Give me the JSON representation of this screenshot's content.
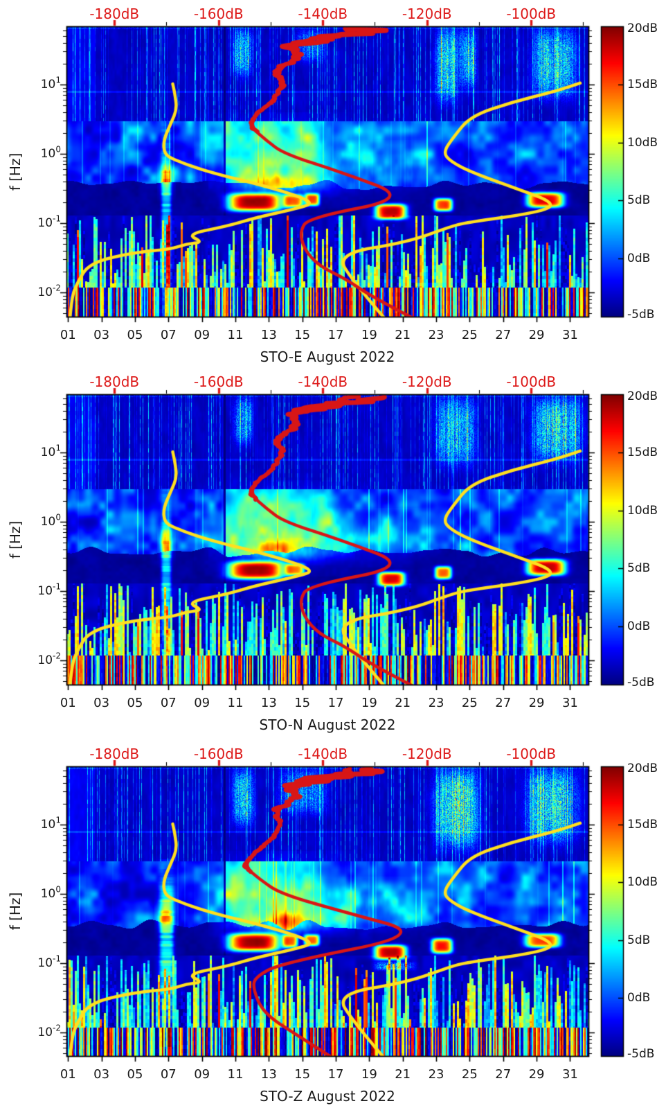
{
  "figure": {
    "background": "#ffffff"
  },
  "chart_data": {
    "type": "heatmap",
    "description": "Three stacked seismic power spectral density spectrograms (daily PSD vs frequency, jet colormap, dB relative scale) with overlaid noise-model curves (yellow) and station median spectrum (red) plotted against the secondary top dB axis.",
    "shared": {
      "x_axis": {
        "tick_labels": [
          "01",
          "03",
          "05",
          "07",
          "09",
          "11",
          "13",
          "15",
          "17",
          "19",
          "21",
          "23",
          "25",
          "27",
          "29",
          "31"
        ],
        "tick_days": [
          1,
          3,
          5,
          7,
          9,
          11,
          13,
          15,
          17,
          19,
          21,
          23,
          25,
          27,
          29,
          31
        ],
        "range_days": [
          0.9,
          32.1
        ]
      },
      "y_axis": {
        "label": "f [Hz]",
        "scale": "log",
        "tick_labels": [
          {
            "base": "10",
            "exp": "1"
          },
          {
            "base": "10",
            "exp": "0"
          },
          {
            "base": "10",
            "exp": "-1"
          },
          {
            "base": "10",
            "exp": "-2"
          }
        ],
        "range_hz": [
          0.0046,
          69
        ]
      },
      "top_axis": {
        "tick_labels": [
          "-180dB",
          "-160dB",
          "-140dB",
          "-120dB",
          "-100dB"
        ],
        "tick_db": [
          -180,
          -160,
          -140,
          -120,
          -100
        ],
        "minor_tick_db": [
          -170,
          -150,
          -130,
          -110,
          -90
        ],
        "range_db": [
          -189.2,
          -89.0
        ],
        "label_color": "#dd1a1a"
      },
      "colorbar": {
        "tick_labels": [
          "20dB",
          "15dB",
          "10dB",
          "5dB",
          "0dB",
          "-5dB"
        ],
        "tick_db": [
          20,
          15,
          10,
          5,
          0,
          -5
        ],
        "range_db": [
          -5,
          20
        ],
        "colormap": "jet"
      },
      "overlays": {
        "yellow_noise_model_low": {
          "color": "#ffdf1f",
          "points_db_hz": [
            [
              -188.6,
              0.0037
            ],
            [
              -188.2,
              0.0083
            ],
            [
              -187.3,
              0.013
            ],
            [
              -184.8,
              0.027
            ],
            [
              -175.9,
              0.038
            ],
            [
              -169.2,
              0.042
            ],
            [
              -166.2,
              0.05
            ],
            [
              -162.9,
              0.053
            ],
            [
              -166.2,
              0.069
            ],
            [
              -158.2,
              0.091
            ],
            [
              -152.9,
              0.12
            ],
            [
              -144.9,
              0.163
            ],
            [
              -141.3,
              0.2
            ],
            [
              -150.1,
              0.33
            ],
            [
              -162.1,
              0.55
            ],
            [
              -168.7,
              0.83
            ],
            [
              -170.4,
              1.0
            ],
            [
              -170.6,
              1.56
            ],
            [
              -169.1,
              2.8
            ],
            [
              -168.0,
              4.4
            ],
            [
              -168.4,
              7.4
            ],
            [
              -168.8,
              10.2
            ]
          ]
        },
        "yellow_noise_model_high": {
          "color": "#ffdf1f",
          "points_db_hz": [
            [
              -127.2,
              0.0035
            ],
            [
              -134.1,
              0.014
            ],
            [
              -137.4,
              0.036
            ],
            [
              -123.8,
              0.053
            ],
            [
              -115.5,
              0.089
            ],
            [
              -112.5,
              0.102
            ],
            [
              -98.7,
              0.142
            ],
            [
              -95.0,
              0.192
            ],
            [
              -103.6,
              0.33
            ],
            [
              -111.6,
              0.55
            ],
            [
              -115.5,
              0.78
            ],
            [
              -116.9,
              1.05
            ],
            [
              -114.9,
              1.75
            ],
            [
              -111.6,
              3.5
            ],
            [
              -103.6,
              5.6
            ],
            [
              -95.6,
              7.9
            ],
            [
              -90.6,
              10.5
            ]
          ]
        },
        "red_spectrum": {
          "color": "#d81616",
          "points_db_hz": [
            [
              -120.5,
              0.0035
            ],
            [
              -130.2,
              0.0083
            ],
            [
              -135.8,
              0.016
            ],
            [
              -140.7,
              0.024
            ],
            [
              -143.6,
              0.042
            ],
            [
              -144.4,
              0.076
            ],
            [
              -142.7,
              0.12
            ],
            [
              -123.1,
              0.23
            ],
            [
              -136.7,
              0.55
            ],
            [
              -147.4,
              1.0
            ],
            [
              -150.8,
              1.55
            ],
            [
              -153.9,
              2.5
            ],
            [
              -152.8,
              3.7
            ],
            [
              -149.5,
              5.9
            ],
            [
              -147.7,
              10.0
            ],
            [
              -148.8,
              16.0
            ],
            [
              -144.8,
              25.0
            ],
            [
              -146.8,
              36.0
            ],
            [
              -140.8,
              48.0
            ],
            [
              -135.5,
              55.0
            ]
          ]
        }
      }
    },
    "panels": [
      {
        "title": "STO-E August 2022",
        "hotspots": [
          {
            "day": [
              10.55,
              13.7
            ],
            "hz": [
              0.15,
              0.27
            ],
            "db": 23,
            "style": "blob"
          },
          {
            "day": [
              13.85,
              15.05
            ],
            "hz": [
              0.17,
              0.26
            ],
            "db": 18,
            "style": "blob"
          },
          {
            "day": [
              15.15,
              16.0
            ],
            "hz": [
              0.18,
              0.27
            ],
            "db": 19,
            "style": "blob"
          },
          {
            "day": [
              19.35,
              21.2
            ],
            "hz": [
              0.115,
              0.19
            ],
            "db": 23,
            "style": "blob"
          },
          {
            "day": [
              22.85,
              23.95
            ],
            "hz": [
              0.15,
              0.23
            ],
            "db": 20,
            "style": "blob"
          },
          {
            "day": [
              28.4,
              30.6
            ],
            "hz": [
              0.17,
              0.28
            ],
            "db": 22,
            "style": "blob"
          },
          {
            "day": [
              6.55,
              7.15
            ],
            "hz": [
              0.015,
              0.9
            ],
            "db": 10,
            "style": "streak"
          },
          {
            "day": [
              6.5,
              7.2
            ],
            "hz": [
              0.25,
              0.75
            ],
            "db": 9,
            "style": "soft"
          },
          {
            "day": [
              10.5,
              17.2
            ],
            "hz": [
              0.3,
              2.2
            ],
            "db": 7,
            "style": "soft"
          },
          {
            "day": [
              17.2,
              22.5
            ],
            "hz": [
              0.32,
              1.1
            ],
            "db": 4,
            "style": "soft"
          },
          {
            "day": [
              11.0,
              16.5
            ],
            "hz": [
              0.28,
              0.5
            ],
            "db": 8,
            "style": "soft"
          },
          {
            "day": [
              22.95,
              24.25
            ],
            "hz": [
              6,
              62
            ],
            "db": 15,
            "style": "speckle"
          },
          {
            "day": [
              24.35,
              25.4
            ],
            "hz": [
              9,
              62
            ],
            "db": 12,
            "style": "speckle"
          },
          {
            "day": [
              28.8,
              31.3
            ],
            "hz": [
              7,
              62
            ],
            "db": 14,
            "style": "speckle"
          },
          {
            "day": [
              10.85,
              12.0
            ],
            "hz": [
              14,
              62
            ],
            "db": 11,
            "style": "speckle"
          },
          {
            "day": [
              14.6,
              16.3
            ],
            "hz": [
              22,
              62
            ],
            "db": 8,
            "style": "speckle"
          }
        ]
      },
      {
        "title": "STO-N August 2022",
        "hotspots": [
          {
            "day": [
              10.55,
              13.85
            ],
            "hz": [
              0.15,
              0.27
            ],
            "db": 23,
            "style": "blob"
          },
          {
            "day": [
              13.95,
              15.1
            ],
            "hz": [
              0.17,
              0.25
            ],
            "db": 17,
            "style": "blob"
          },
          {
            "day": [
              19.5,
              21.1
            ],
            "hz": [
              0.12,
              0.19
            ],
            "db": 22,
            "style": "blob"
          },
          {
            "day": [
              22.9,
              23.9
            ],
            "hz": [
              0.15,
              0.23
            ],
            "db": 19,
            "style": "blob"
          },
          {
            "day": [
              28.4,
              30.7
            ],
            "hz": [
              0.17,
              0.29
            ],
            "db": 23,
            "style": "blob"
          },
          {
            "day": [
              6.55,
              7.15
            ],
            "hz": [
              0.015,
              0.9
            ],
            "db": 10,
            "style": "streak"
          },
          {
            "day": [
              6.5,
              7.2
            ],
            "hz": [
              0.3,
              0.8
            ],
            "db": 10,
            "style": "soft"
          },
          {
            "day": [
              10.5,
              17.2
            ],
            "hz": [
              0.3,
              2.2
            ],
            "db": 7,
            "style": "soft"
          },
          {
            "day": [
              17.2,
              22.5
            ],
            "hz": [
              0.32,
              1.1
            ],
            "db": 4,
            "style": "soft"
          },
          {
            "day": [
              11.0,
              16.5
            ],
            "hz": [
              0.28,
              0.5
            ],
            "db": 8,
            "style": "soft"
          },
          {
            "day": [
              22.95,
              25.3
            ],
            "hz": [
              7,
              62
            ],
            "db": 12,
            "style": "speckle"
          },
          {
            "day": [
              28.8,
              31.6
            ],
            "hz": [
              8,
              62
            ],
            "db": 14,
            "style": "speckle"
          },
          {
            "day": [
              10.85,
              12.0
            ],
            "hz": [
              14,
              62
            ],
            "db": 10,
            "style": "speckle"
          }
        ]
      },
      {
        "title": "STO-Z August 2022",
        "red_override_points_db_hz": [
          [
            -138.5,
            0.0045
          ],
          [
            -145.1,
            0.0093
          ],
          [
            -151.4,
            0.019
          ],
          [
            -153.4,
            0.043
          ],
          [
            -153.0,
            0.063
          ],
          [
            -148.0,
            0.1
          ],
          [
            -119.9,
            0.26
          ],
          [
            -136.0,
            0.55
          ],
          [
            -148.0,
            1.0
          ],
          [
            -152.0,
            1.6
          ],
          [
            -155.0,
            2.5
          ],
          [
            -153.5,
            3.7
          ],
          [
            -150.0,
            5.9
          ],
          [
            -148.0,
            10.0
          ],
          [
            -149.0,
            16.0
          ],
          [
            -145.0,
            25.0
          ],
          [
            -147.0,
            36.0
          ],
          [
            -141.0,
            48.0
          ],
          [
            -136.0,
            55.0
          ]
        ],
        "hotspots": [
          {
            "day": [
              10.55,
              13.6
            ],
            "hz": [
              0.15,
              0.27
            ],
            "db": 23,
            "style": "blob"
          },
          {
            "day": [
              13.8,
              14.7
            ],
            "hz": [
              0.17,
              0.26
            ],
            "db": 18,
            "style": "blob"
          },
          {
            "day": [
              15.1,
              16.0
            ],
            "hz": [
              0.18,
              0.26
            ],
            "db": 18,
            "style": "blob"
          },
          {
            "day": [
              19.3,
              21.2
            ],
            "hz": [
              0.115,
              0.185
            ],
            "db": 23,
            "style": "blob"
          },
          {
            "day": [
              22.7,
              23.95
            ],
            "hz": [
              0.14,
              0.23
            ],
            "db": 21,
            "style": "blob"
          },
          {
            "day": [
              28.3,
              30.4
            ],
            "hz": [
              0.17,
              0.27
            ],
            "db": 20,
            "style": "blob"
          },
          {
            "day": [
              6.45,
              7.3
            ],
            "hz": [
              0.02,
              1.0
            ],
            "db": 11,
            "style": "streak"
          },
          {
            "day": [
              6.4,
              7.3
            ],
            "hz": [
              0.3,
              0.8
            ],
            "db": 12,
            "style": "soft"
          },
          {
            "day": [
              10.5,
              17.2
            ],
            "hz": [
              0.3,
              2.3
            ],
            "db": 7,
            "style": "soft"
          },
          {
            "day": [
              17.2,
              22.5
            ],
            "hz": [
              0.3,
              1.2
            ],
            "db": 4,
            "style": "soft"
          },
          {
            "day": [
              11.0,
              16.5
            ],
            "hz": [
              0.28,
              0.5
            ],
            "db": 8,
            "style": "soft"
          },
          {
            "day": [
              22.85,
              25.5
            ],
            "hz": [
              5,
              62
            ],
            "db": 16,
            "style": "speckle"
          },
          {
            "day": [
              28.4,
              31.4
            ],
            "hz": [
              6,
              62
            ],
            "db": 15,
            "style": "speckle"
          },
          {
            "day": [
              10.8,
              12.1
            ],
            "hz": [
              10,
              62
            ],
            "db": 12,
            "style": "speckle"
          },
          {
            "day": [
              13.6,
              16.4
            ],
            "hz": [
              15,
              62
            ],
            "db": 9,
            "style": "speckle"
          },
          {
            "day": [
              19.4,
              21.6
            ],
            "hz": [
              0.08,
              0.105
            ],
            "db": 12,
            "style": "speckle"
          }
        ]
      }
    ]
  }
}
